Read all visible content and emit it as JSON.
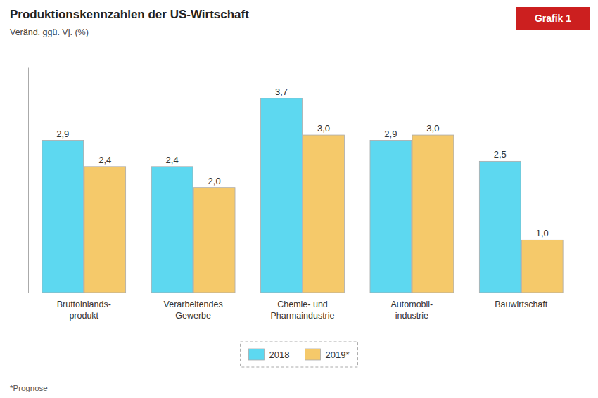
{
  "chart_data": {
    "type": "bar",
    "title": "Produktionskennzahlen der US-Wirtschaft",
    "subtitle": "Veränd. ggü. Vj. (%)",
    "annotations": [
      "Grafik 1",
      "*Prognose"
    ],
    "categories": [
      "Bruttoinlands-\nprodukt",
      "Verarbeitendes\nGewerbe",
      "Chemie- und\nPharmaindustrie",
      "Automobil-\nindustrie",
      "Bauwirtschaft"
    ],
    "series": [
      {
        "name": "2018",
        "color": "#5DD8F0",
        "values": [
          2.9,
          2.4,
          3.7,
          2.9,
          2.5
        ],
        "value_labels": [
          "2,9",
          "2,4",
          "3,7",
          "2,9",
          "2,5"
        ]
      },
      {
        "name": "2019*",
        "color": "#F5C96A",
        "values": [
          2.4,
          2.0,
          3.0,
          3.0,
          1.0
        ],
        "value_labels": [
          "2,4",
          "2,0",
          "3,0",
          "3,0",
          "1,0"
        ]
      }
    ],
    "ylim": [
      0,
      4.3
    ],
    "grid": false,
    "legend": "bottom",
    "data_labels": true,
    "tick_labels": "x"
  }
}
